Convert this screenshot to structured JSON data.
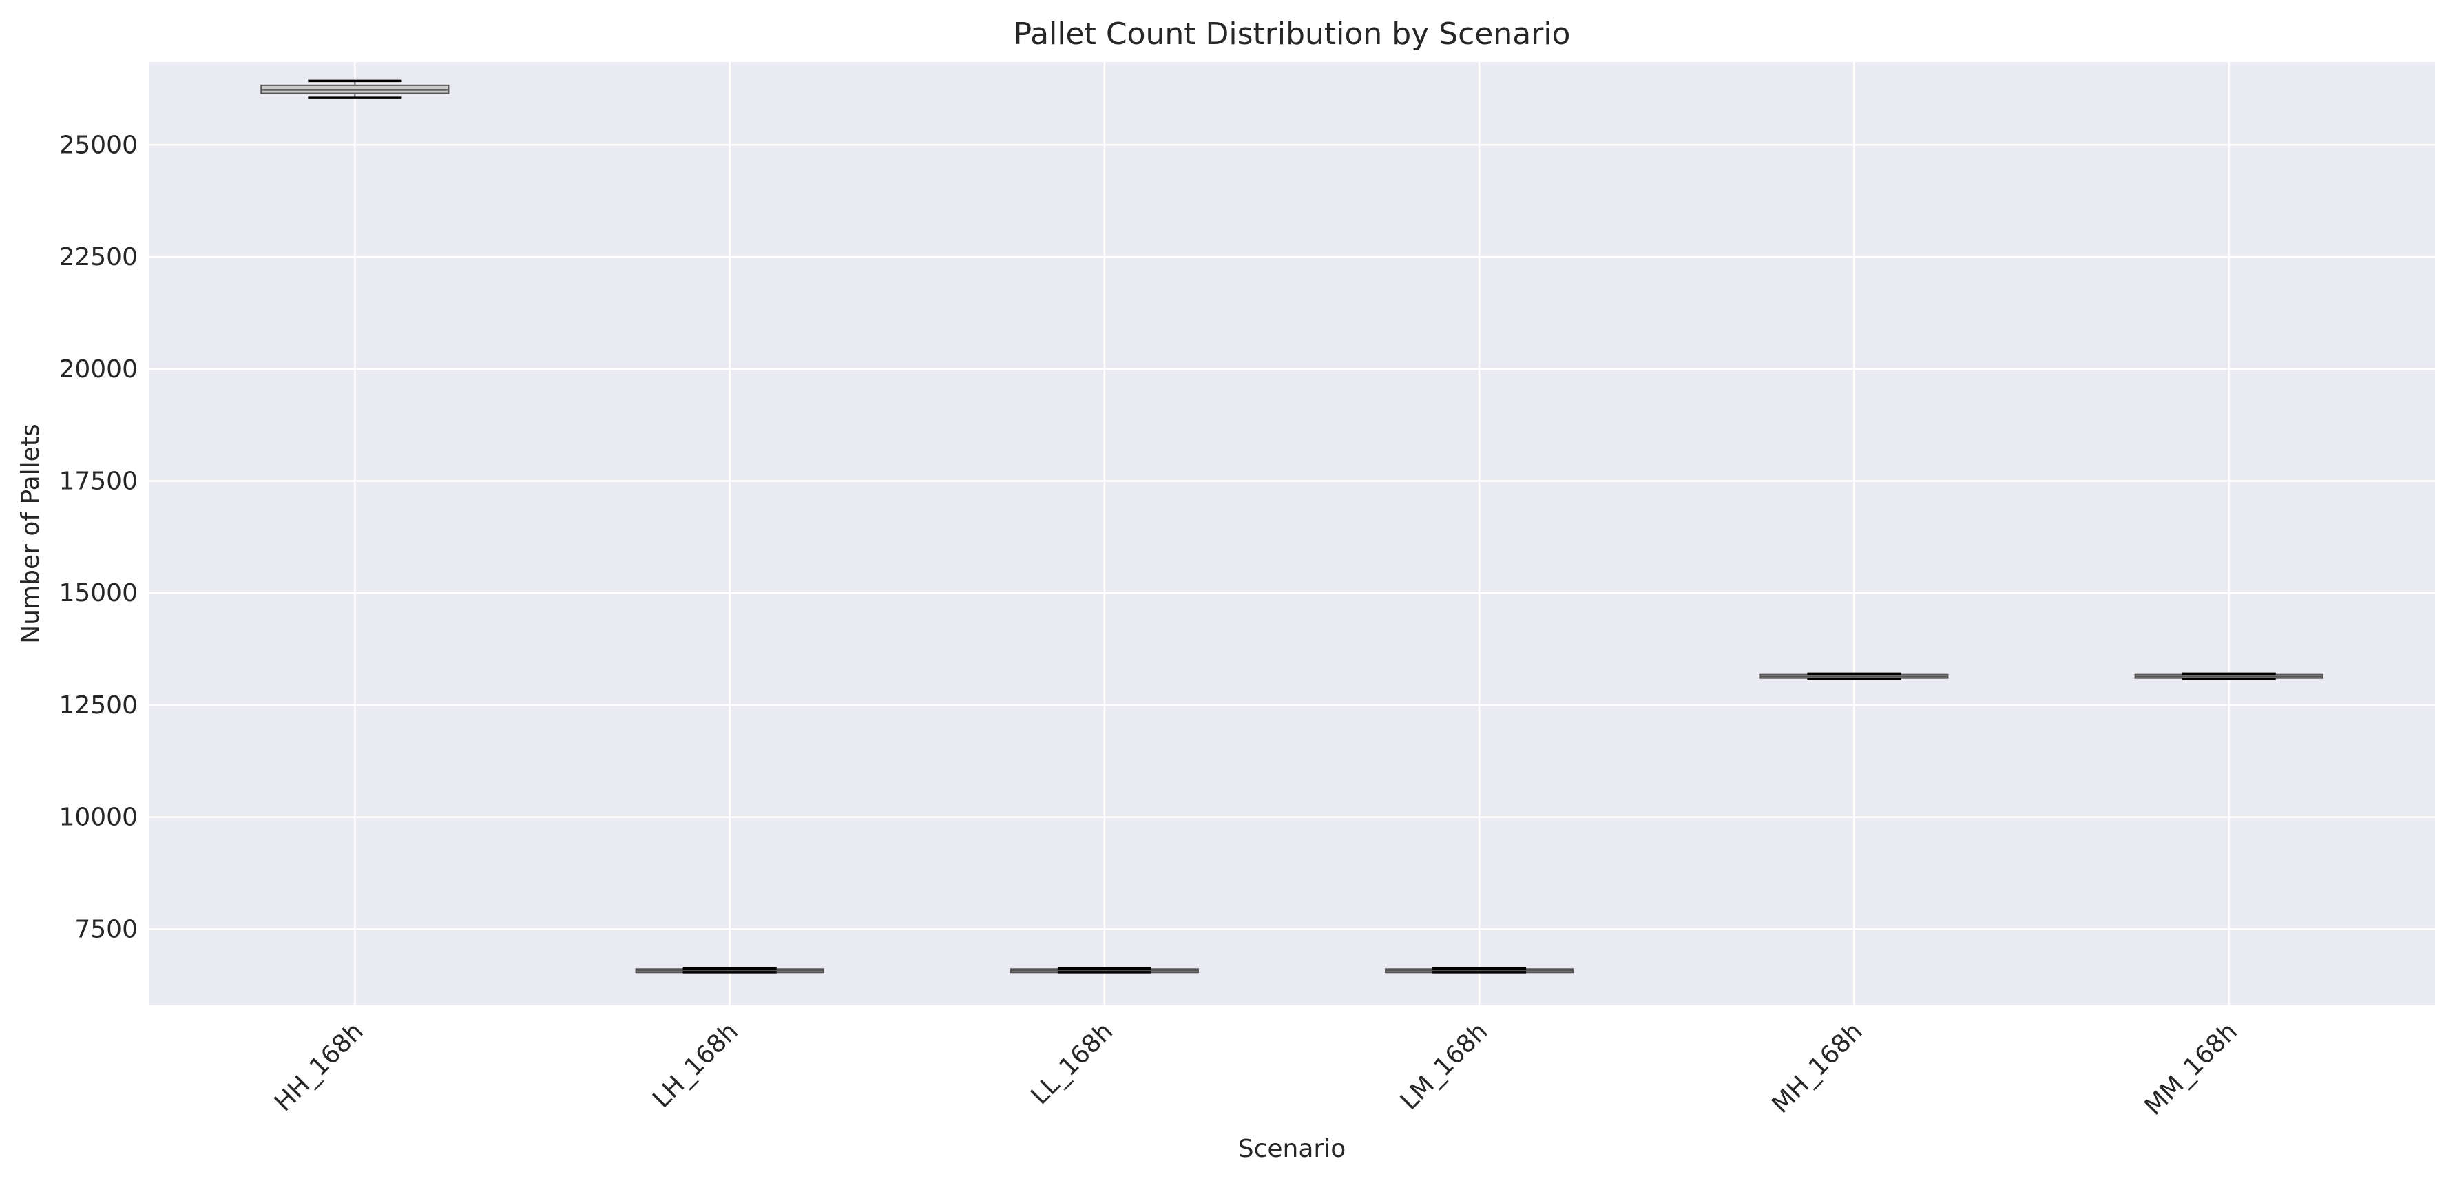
{
  "chart_data": {
    "type": "box",
    "title": "Pallet Count Distribution by Scenario",
    "xlabel": "Scenario",
    "ylabel": "Number of Pallets",
    "ylim": [
      5800,
      26850
    ],
    "yticks": [
      7500,
      10000,
      12500,
      15000,
      17500,
      20000,
      22500,
      25000
    ],
    "grid": true,
    "categories": [
      "HH_168h",
      "LH_168h",
      "LL_168h",
      "LM_168h",
      "MH_168h",
      "MM_168h"
    ],
    "boxes": [
      {
        "category": "HH_168h",
        "whisker_low": 26050,
        "q1": 26150,
        "median": 26230,
        "q3": 26330,
        "whisker_high": 26430
      },
      {
        "category": "LH_168h",
        "whisker_low": 6540,
        "q1": 6560,
        "median": 6575,
        "q3": 6610,
        "whisker_high": 6620
      },
      {
        "category": "LL_168h",
        "whisker_low": 6540,
        "q1": 6560,
        "median": 6575,
        "q3": 6610,
        "whisker_high": 6620
      },
      {
        "category": "LM_168h",
        "whisker_low": 6540,
        "q1": 6560,
        "median": 6575,
        "q3": 6610,
        "whisker_high": 6620
      },
      {
        "category": "MH_168h",
        "whisker_low": 13080,
        "q1": 13110,
        "median": 13140,
        "q3": 13180,
        "whisker_high": 13200
      },
      {
        "category": "MM_168h",
        "whisker_low": 13080,
        "q1": 13110,
        "median": 13140,
        "q3": 13180,
        "whisker_high": 13200
      }
    ],
    "colors": {
      "background": "#eaeaf2",
      "grid": "#ffffff",
      "box_fill": "#c8c8c8",
      "box_edge": "#555555",
      "whisker": "#000000"
    }
  }
}
